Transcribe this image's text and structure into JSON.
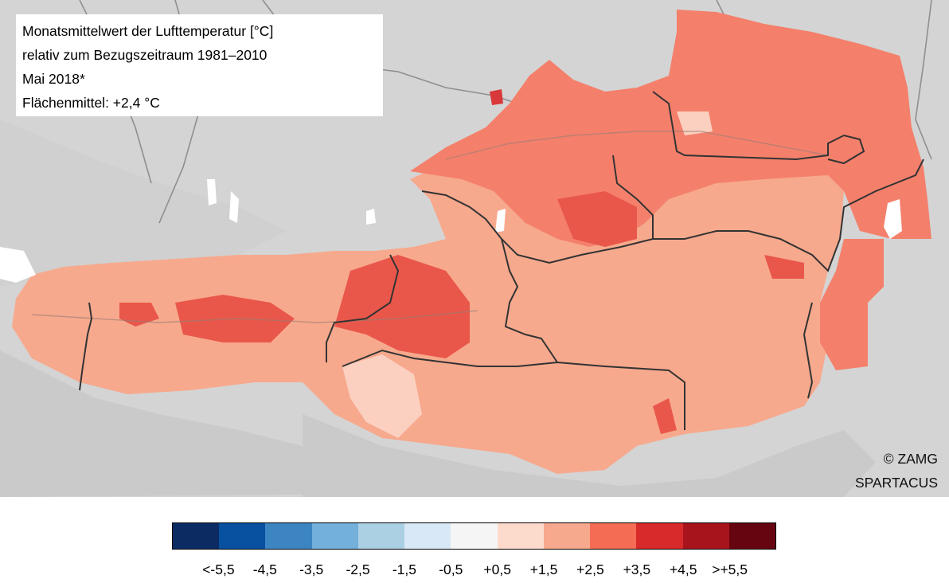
{
  "title_lines": [
    "Monatsmittelwert der Lufttemperatur [°C]",
    "relativ zum Bezugszeitraum 1981–2010",
    "Mai 2018*",
    "Flächenmittel: +2,4 °C"
  ],
  "credits": [
    "© ZAMG",
    "SPARTACUS"
  ],
  "legend": {
    "colors": [
      "#0c2b63",
      "#0850a0",
      "#3d85c2",
      "#74b0dc",
      "#abd0e4",
      "#d9e8f6",
      "#f5f5f5",
      "#fddbcc",
      "#f7a98d",
      "#f46c53",
      "#d82a2a",
      "#a8141c",
      "#660510"
    ],
    "labels": [
      "<-5,5",
      "-4,5",
      "-3,5",
      "-2,5",
      "-1,5",
      "-0,5",
      "+0,5",
      "+1,5",
      "+2,5",
      "+3,5",
      "+4,5",
      ">+5,5"
    ]
  },
  "map_colors": {
    "background": "#d4d4d4",
    "north_region": "#f4806b",
    "central_region": "#f7a98d",
    "warm_spots": "#e9574a",
    "cool_spots": "#fbd0c0",
    "water": "#ffffff",
    "rivers": "#8f8f8f",
    "borders": "#333333"
  }
}
